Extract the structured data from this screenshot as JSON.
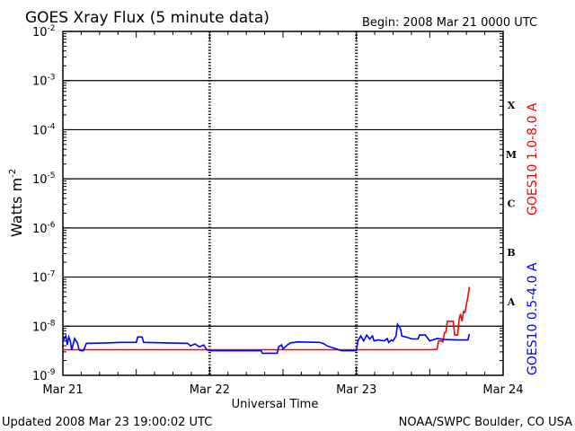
{
  "header": {
    "title": "GOES Xray Flux (5 minute data)",
    "begin": "Begin:  2008 Mar 21 0000 UTC"
  },
  "footer": {
    "updated": "Updated 2008 Mar 23 19:00:02 UTC",
    "credit": "NOAA/SWPC Boulder, CO USA"
  },
  "chart_data": {
    "type": "line",
    "title": "GOES Xray Flux (5 minute data)",
    "xlabel": "Universal Time",
    "ylabel": "Watts m^-2",
    "ylabel_base": "Watts m",
    "ylabel_exp": "-2",
    "y_scale": "log",
    "ylim": [
      1e-09,
      0.01
    ],
    "xlim_days": [
      0,
      3
    ],
    "x_ticks": [
      "Mar 21",
      "Mar 22",
      "Mar 23",
      "Mar 24"
    ],
    "y_ticks": [
      {
        "base": "10",
        "exp": "-2"
      },
      {
        "base": "10",
        "exp": "-3"
      },
      {
        "base": "10",
        "exp": "-4"
      },
      {
        "base": "10",
        "exp": "-5"
      },
      {
        "base": "10",
        "exp": "-6"
      },
      {
        "base": "10",
        "exp": "-7"
      },
      {
        "base": "10",
        "exp": "-8"
      },
      {
        "base": "10",
        "exp": "-9"
      }
    ],
    "flare_classes": [
      {
        "label": "X",
        "exp": -4
      },
      {
        "label": "M",
        "exp": -5
      },
      {
        "label": "C",
        "exp": -6
      },
      {
        "label": "B",
        "exp": -7
      },
      {
        "label": "A",
        "exp": -8
      }
    ],
    "colors": {
      "long": "#ff0000",
      "short": "#0000ff",
      "grid": "#000000"
    },
    "series": [
      {
        "name": "GOES10 1.0-8.0 A",
        "color": "#ff0000",
        "points": [
          [
            0.0,
            -8.48
          ],
          [
            0.18,
            -8.48
          ],
          [
            0.5,
            -8.48
          ],
          [
            0.8,
            -8.48
          ],
          [
            1.2,
            -8.48
          ],
          [
            1.6,
            -8.48
          ],
          [
            1.95,
            -8.48
          ],
          [
            2.2,
            -8.48
          ],
          [
            2.42,
            -8.48
          ],
          [
            2.5,
            -8.48
          ],
          [
            2.55,
            -8.47
          ],
          [
            2.56,
            -8.3
          ],
          [
            2.58,
            -8.3
          ],
          [
            2.59,
            -8.32
          ],
          [
            2.6,
            -8.13
          ],
          [
            2.61,
            -8.12
          ],
          [
            2.62,
            -7.9
          ],
          [
            2.66,
            -7.9
          ],
          [
            2.67,
            -8.18
          ],
          [
            2.69,
            -8.18
          ],
          [
            2.7,
            -7.86
          ],
          [
            2.71,
            -7.75
          ],
          [
            2.72,
            -7.9
          ],
          [
            2.73,
            -7.7
          ],
          [
            2.74,
            -7.72
          ],
          [
            2.75,
            -7.55
          ],
          [
            2.76,
            -7.4
          ],
          [
            2.77,
            -7.2
          ]
        ]
      },
      {
        "name": "GOES10 0.5-4.0 A",
        "color": "#0000ff",
        "points": [
          [
            0.0,
            -8.3
          ],
          [
            0.02,
            -8.2
          ],
          [
            0.03,
            -8.38
          ],
          [
            0.04,
            -8.22
          ],
          [
            0.05,
            -8.3
          ],
          [
            0.06,
            -8.48
          ],
          [
            0.08,
            -8.25
          ],
          [
            0.1,
            -8.35
          ],
          [
            0.11,
            -8.48
          ],
          [
            0.12,
            -8.5
          ],
          [
            0.14,
            -8.5
          ],
          [
            0.16,
            -8.35
          ],
          [
            0.3,
            -8.34
          ],
          [
            0.4,
            -8.33
          ],
          [
            0.5,
            -8.33
          ],
          [
            0.51,
            -8.22
          ],
          [
            0.54,
            -8.22
          ],
          [
            0.55,
            -8.33
          ],
          [
            0.85,
            -8.35
          ],
          [
            0.87,
            -8.4
          ],
          [
            0.9,
            -8.36
          ],
          [
            0.93,
            -8.42
          ],
          [
            0.96,
            -8.38
          ],
          [
            0.98,
            -8.48
          ],
          [
            1.0,
            -8.5
          ],
          [
            1.2,
            -8.5
          ],
          [
            1.35,
            -8.5
          ],
          [
            1.36,
            -8.55
          ],
          [
            1.46,
            -8.55
          ],
          [
            1.47,
            -8.42
          ],
          [
            1.49,
            -8.38
          ],
          [
            1.5,
            -8.46
          ],
          [
            1.53,
            -8.38
          ],
          [
            1.55,
            -8.34
          ],
          [
            1.6,
            -8.32
          ],
          [
            1.75,
            -8.33
          ],
          [
            1.78,
            -8.36
          ],
          [
            1.8,
            -8.4
          ],
          [
            1.85,
            -8.45
          ],
          [
            1.9,
            -8.5
          ],
          [
            2.0,
            -8.5
          ],
          [
            2.01,
            -8.3
          ],
          [
            2.03,
            -8.2
          ],
          [
            2.05,
            -8.3
          ],
          [
            2.07,
            -8.18
          ],
          [
            2.09,
            -8.26
          ],
          [
            2.11,
            -8.2
          ],
          [
            2.12,
            -8.3
          ],
          [
            2.15,
            -8.28
          ],
          [
            2.19,
            -8.3
          ],
          [
            2.21,
            -8.25
          ],
          [
            2.22,
            -8.33
          ],
          [
            2.24,
            -8.28
          ],
          [
            2.25,
            -8.3
          ],
          [
            2.27,
            -8.2
          ],
          [
            2.28,
            -7.96
          ],
          [
            2.3,
            -8.05
          ],
          [
            2.31,
            -8.2
          ],
          [
            2.35,
            -8.23
          ],
          [
            2.38,
            -8.26
          ],
          [
            2.42,
            -8.26
          ],
          [
            2.43,
            -8.18
          ],
          [
            2.47,
            -8.18
          ],
          [
            2.5,
            -8.3
          ],
          [
            2.52,
            -8.28
          ],
          [
            2.55,
            -8.25
          ],
          [
            2.6,
            -8.27
          ],
          [
            2.7,
            -8.28
          ],
          [
            2.76,
            -8.28
          ],
          [
            2.77,
            -8.16
          ]
        ]
      }
    ]
  }
}
